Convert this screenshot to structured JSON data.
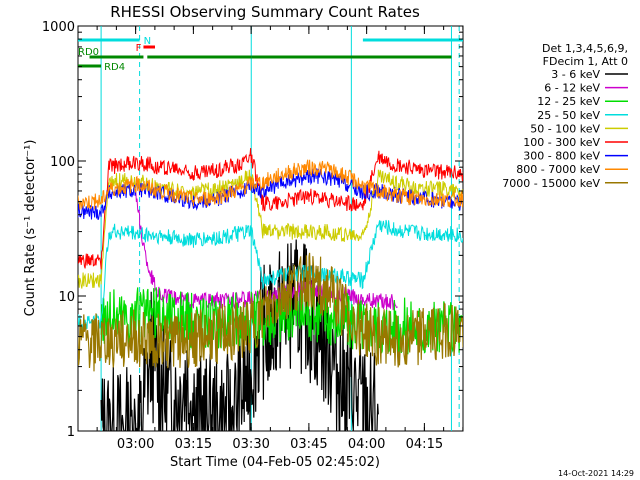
{
  "chart_data": {
    "type": "line",
    "title": "RHESSI Observing Summary Count Rates",
    "xlabel": "Start Time (04-Feb-05 02:45:02)",
    "ylabel": "Count Rate (s⁻¹ detector⁻¹)",
    "yscale": "log",
    "ylim": [
      1,
      1000
    ],
    "xlim_minutes": [
      0,
      100
    ],
    "x_ticks": [
      {
        "label": "03:00",
        "minutes": 14.97
      },
      {
        "label": "03:15",
        "minutes": 29.97
      },
      {
        "label": "03:30",
        "minutes": 44.97
      },
      {
        "label": "03:45",
        "minutes": 59.97
      },
      {
        "label": "04:00",
        "minutes": 74.97
      },
      {
        "label": "04:15",
        "minutes": 89.97
      }
    ],
    "y_ticks": [
      {
        "label": "1",
        "value": 1
      },
      {
        "label": "10",
        "value": 10
      },
      {
        "label": "100",
        "value": 100
      },
      {
        "label": "1000",
        "value": 1000
      }
    ],
    "legend_header": [
      "Det 1,3,4,5,6,9,",
      "FDecim 1, Att 0"
    ],
    "legend_position": "right",
    "grid": false,
    "series": [
      {
        "name": "3 - 6 keV",
        "color": "#000000",
        "x": [
          0,
          6,
          16,
          19,
          22,
          25,
          28,
          32,
          36,
          40,
          44,
          47,
          50,
          53,
          56,
          59,
          62,
          65,
          68,
          71,
          74,
          78,
          82,
          86,
          90,
          94,
          100
        ],
        "y": [
          null,
          1,
          1,
          4,
          2,
          1.5,
          2.5,
          1.2,
          1.2,
          1.2,
          2.5,
          5,
          6,
          8,
          9,
          8,
          6,
          4,
          2.5,
          2,
          1.5,
          1.2,
          null,
          null,
          null,
          null,
          null
        ]
      },
      {
        "name": "6 - 12 keV",
        "color": "#cc00cc",
        "x": [
          15,
          16,
          17.5,
          19,
          20.5,
          22,
          25,
          30,
          35,
          40,
          45,
          50,
          55,
          60,
          65,
          70,
          75,
          80,
          83
        ],
        "y": [
          60,
          35,
          20,
          14,
          11,
          10,
          9.5,
          9.3,
          9.2,
          9.3,
          9.5,
          10,
          11,
          11.5,
          11,
          10,
          9.5,
          9,
          9
        ]
      },
      {
        "name": "12 - 25 keV",
        "color": "#00dd00",
        "x": [
          0,
          6,
          10,
          16,
          22,
          28,
          34,
          40,
          45,
          50,
          55,
          60,
          65,
          70,
          75,
          80,
          86,
          92,
          100
        ],
        "y": [
          null,
          7,
          7,
          7,
          7,
          6.5,
          6.5,
          6.5,
          6.5,
          7,
          7,
          7.5,
          7,
          6.5,
          6,
          6,
          6,
          5.5,
          5.5
        ]
      },
      {
        "name": "25 - 50 keV",
        "color": "#00dddd",
        "x": [
          0,
          6,
          8,
          12,
          16,
          20,
          25,
          30,
          36,
          42,
          45,
          48,
          52,
          56,
          60,
          64,
          68,
          71,
          74,
          78,
          82,
          86,
          90,
          96,
          100
        ],
        "y": [
          6.5,
          6.5,
          30,
          30,
          29,
          28,
          27,
          26,
          27,
          29,
          30,
          13,
          14,
          14.5,
          15,
          14.5,
          14,
          13.5,
          13,
          34,
          31,
          30,
          29,
          29,
          28
        ]
      },
      {
        "name": "50 - 100 keV",
        "color": "#cccc00",
        "x": [
          0,
          6,
          8,
          12,
          16,
          20,
          25,
          30,
          36,
          42,
          45,
          48,
          52,
          56,
          60,
          64,
          68,
          71,
          74,
          78,
          82,
          86,
          90,
          96,
          100
        ],
        "y": [
          13,
          13,
          70,
          72,
          70,
          66,
          60,
          58,
          62,
          70,
          78,
          30,
          30,
          30,
          30,
          30,
          29,
          28,
          28,
          78,
          70,
          65,
          62,
          62,
          60
        ]
      },
      {
        "name": "100 - 300 keV",
        "color": "#ff0000",
        "x": [
          0,
          6,
          8,
          12,
          16,
          20,
          25,
          30,
          36,
          42,
          45,
          48,
          52,
          56,
          60,
          64,
          68,
          71,
          74,
          78,
          82,
          86,
          90,
          96,
          100
        ],
        "y": [
          18,
          18,
          90,
          95,
          98,
          92,
          88,
          82,
          85,
          95,
          110,
          48,
          50,
          52,
          55,
          52,
          50,
          48,
          46,
          108,
          95,
          90,
          85,
          82,
          80
        ]
      },
      {
        "name": "300 - 800 keV",
        "color": "#0000ff",
        "x": [
          0,
          6,
          8,
          12,
          16,
          20,
          25,
          30,
          36,
          42,
          45,
          48,
          52,
          56,
          60,
          64,
          68,
          71,
          74,
          78,
          82,
          86,
          90,
          96,
          100
        ],
        "y": [
          42,
          42,
          58,
          60,
          62,
          58,
          54,
          50,
          52,
          60,
          66,
          60,
          66,
          72,
          78,
          76,
          70,
          64,
          58,
          60,
          56,
          54,
          52,
          50,
          48
        ]
      },
      {
        "name": "800 - 7000 keV",
        "color": "#ff8800",
        "x": [
          0,
          6,
          8,
          12,
          16,
          20,
          25,
          30,
          36,
          42,
          45,
          48,
          52,
          56,
          60,
          64,
          68,
          71,
          74,
          78,
          82,
          86,
          90,
          96,
          100
        ],
        "y": [
          50,
          50,
          62,
          65,
          67,
          62,
          57,
          52,
          54,
          62,
          68,
          70,
          78,
          85,
          90,
          88,
          80,
          74,
          66,
          60,
          56,
          54,
          52,
          52,
          52
        ]
      },
      {
        "name": "7000 - 15000 keV",
        "color": "#997700",
        "x": [
          0,
          6,
          10,
          16,
          22,
          28,
          34,
          40,
          45,
          50,
          54,
          58,
          60,
          63,
          66,
          70,
          74,
          78,
          82,
          86,
          90,
          94,
          100
        ],
        "y": [
          4.5,
          4.5,
          4.8,
          4.8,
          4.8,
          4.6,
          5,
          5.5,
          6,
          8,
          10.5,
          12.5,
          13,
          12,
          10,
          7.5,
          5.5,
          5,
          4.8,
          5,
          5,
          5.5,
          5.5
        ]
      }
    ],
    "annotations": {
      "vertical_lines_minutes": [
        6,
        45,
        71,
        97
      ],
      "dashed_lines_minutes": [
        16,
        99
      ],
      "top_bars": [
        {
          "label": "N",
          "color": "#00dddd",
          "row": 1,
          "segments": [
            [
              0,
              16
            ],
            [
              74,
              100
            ]
          ]
        },
        {
          "label": "F",
          "color": "#ff0000",
          "row": 2,
          "segments": [
            [
              17,
              20
            ]
          ]
        },
        {
          "label": "RD0",
          "color": "#008800",
          "row": 3,
          "segments": [
            [
              3,
              17
            ],
            [
              18,
              45
            ],
            [
              45,
              70
            ],
            [
              70,
              97
            ]
          ]
        },
        {
          "label": "RD4",
          "color": "#008800",
          "row": 4,
          "segments": [
            [
              0,
              6
            ]
          ]
        }
      ]
    }
  },
  "footer": {
    "timestamp": "14-Oct-2021 14:29"
  }
}
